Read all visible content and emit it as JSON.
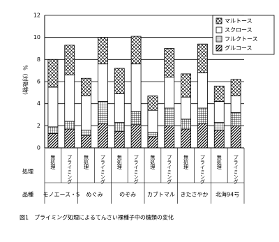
{
  "chart_data": {
    "type": "stacked-bar",
    "title": "図1　プライミング処理によるてんさい裸種子中の糖類の変化",
    "y_label": "%（対乾物）",
    "row_label_treatment": "処理",
    "row_label_variety": "品種",
    "categories": [
      "無処理",
      "プライミング",
      "無処理",
      "プライミング",
      "無処理",
      "プライミング",
      "無処理",
      "プライミング",
      "無処理",
      "プライミング",
      "無処理",
      "プライミング"
    ],
    "groups": [
      "モノエース・S",
      "めぐみ",
      "のぞみ",
      "カブトマル",
      "きたさやか",
      "北海94号"
    ],
    "series": [
      {
        "name": "グルコース",
        "color": "#000000",
        "pattern": "diagonal",
        "values": [
          1.3,
          1.7,
          1.1,
          2.2,
          1.5,
          2.1,
          1.0,
          2.0,
          1.7,
          2.2,
          1.6,
          2.0
        ]
      },
      {
        "name": "フルクトース",
        "color": "#000000",
        "pattern": "grid",
        "values": [
          0.6,
          0.7,
          0.5,
          2.0,
          0.8,
          1.2,
          0.4,
          1.6,
          0.9,
          1.4,
          0.7,
          1.2
        ]
      },
      {
        "name": "スクロース",
        "color": "#000000",
        "pattern": "none",
        "values": [
          3.6,
          4.2,
          3.1,
          3.4,
          2.6,
          4.3,
          2.0,
          2.8,
          2.0,
          3.2,
          1.9,
          1.5
        ]
      },
      {
        "name": "マルトース",
        "color": "#000000",
        "pattern": "crosshatch",
        "values": [
          2.5,
          2.7,
          1.6,
          2.4,
          2.3,
          2.5,
          1.3,
          2.6,
          2.1,
          2.6,
          1.4,
          1.5
        ]
      }
    ],
    "ylim": [
      0,
      12
    ],
    "yticks": [
      0,
      2,
      4,
      6,
      8,
      10,
      12
    ],
    "grid": true,
    "legend": "top-right"
  }
}
